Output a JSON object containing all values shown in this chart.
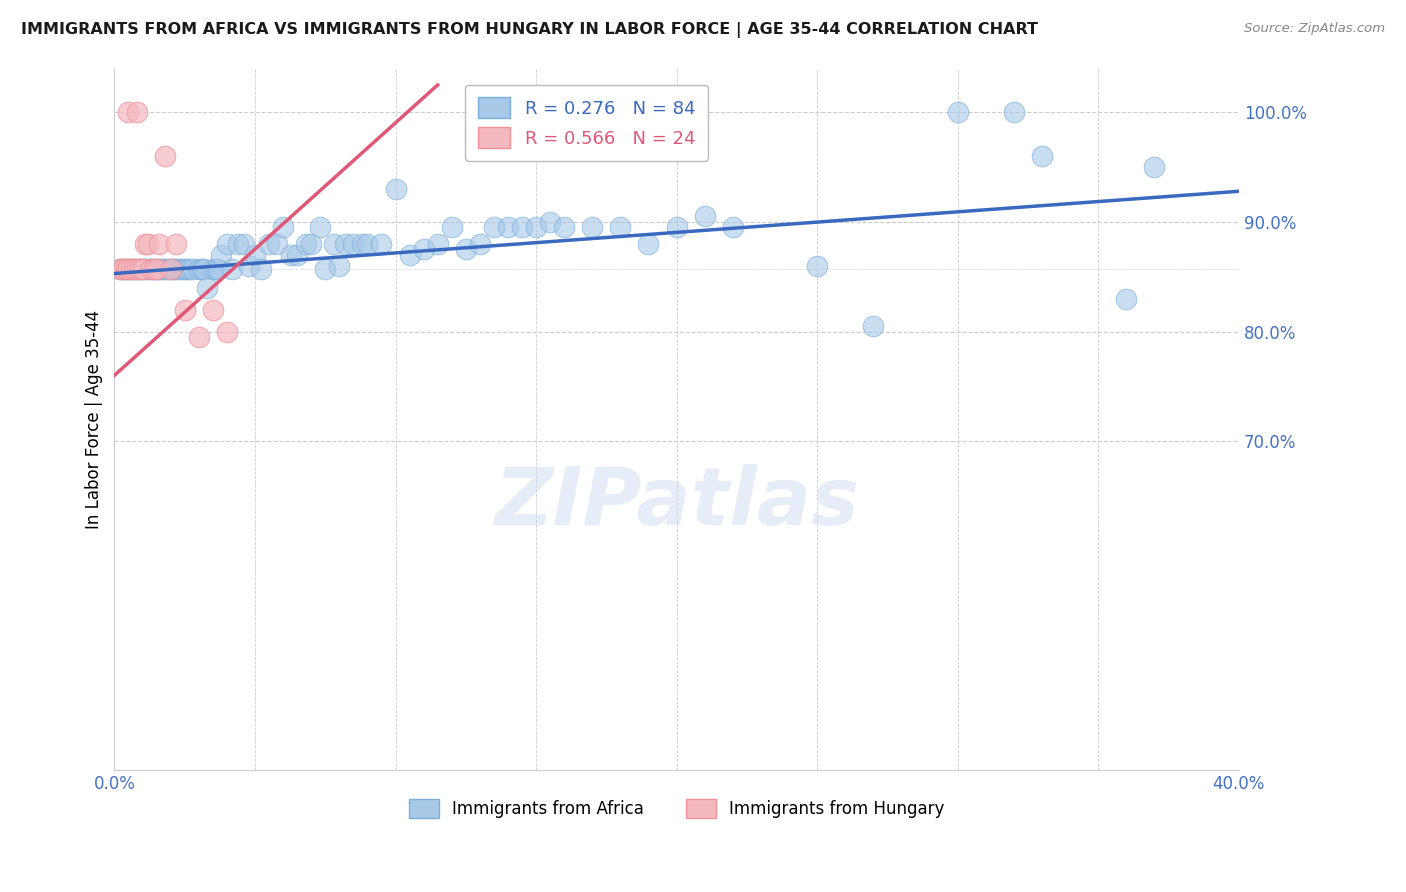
{
  "title": "IMMIGRANTS FROM AFRICA VS IMMIGRANTS FROM HUNGARY IN LABOR FORCE | AGE 35-44 CORRELATION CHART",
  "source": "Source: ZipAtlas.com",
  "ylabel": "In Labor Force | Age 35-44",
  "xlim": [
    0.0,
    0.4
  ],
  "ylim": [
    0.4,
    1.04
  ],
  "yticks": [
    0.7,
    0.8,
    0.9,
    1.0
  ],
  "ytick_labels": [
    "70.0%",
    "80.0%",
    "90.0%",
    "100.0%"
  ],
  "xticks": [
    0.0,
    0.05,
    0.1,
    0.15,
    0.2,
    0.25,
    0.3,
    0.35,
    0.4
  ],
  "xtick_labels": [
    "0.0%",
    "",
    "",
    "",
    "",
    "",
    "",
    "",
    "40.0%"
  ],
  "legend_r_africa": "0.276",
  "legend_n_africa": "84",
  "legend_r_hungary": "0.566",
  "legend_n_hungary": "24",
  "africa_color": "#a8c8e8",
  "africa_edge_color": "#7aaedc",
  "hungary_color": "#f4b8c0",
  "hungary_edge_color": "#f09098",
  "africa_line_color": "#3a6abf",
  "hungary_line_color": "#e05878",
  "tick_color": "#4472c4",
  "watermark": "ZIPatlas",
  "africa_scatter_x": [
    0.002,
    0.003,
    0.004,
    0.005,
    0.006,
    0.007,
    0.008,
    0.009,
    0.01,
    0.011,
    0.012,
    0.013,
    0.014,
    0.015,
    0.016,
    0.017,
    0.018,
    0.019,
    0.02,
    0.021,
    0.022,
    0.023,
    0.024,
    0.025,
    0.026,
    0.027,
    0.028,
    0.03,
    0.031,
    0.032,
    0.033,
    0.035,
    0.036,
    0.037,
    0.038,
    0.04,
    0.042,
    0.044,
    0.046,
    0.048,
    0.05,
    0.052,
    0.055,
    0.058,
    0.06,
    0.063,
    0.065,
    0.068,
    0.07,
    0.073,
    0.075,
    0.078,
    0.08,
    0.082,
    0.085,
    0.088,
    0.09,
    0.095,
    0.1,
    0.105,
    0.11,
    0.115,
    0.12,
    0.125,
    0.13,
    0.135,
    0.14,
    0.145,
    0.15,
    0.155,
    0.16,
    0.17,
    0.18,
    0.19,
    0.2,
    0.21,
    0.22,
    0.25,
    0.27,
    0.3,
    0.32,
    0.33,
    0.36,
    0.37
  ],
  "africa_scatter_y": [
    0.857,
    0.857,
    0.857,
    0.857,
    0.857,
    0.857,
    0.857,
    0.857,
    0.857,
    0.857,
    0.857,
    0.857,
    0.857,
    0.857,
    0.857,
    0.857,
    0.857,
    0.857,
    0.857,
    0.857,
    0.857,
    0.857,
    0.857,
    0.857,
    0.857,
    0.857,
    0.857,
    0.857,
    0.857,
    0.857,
    0.84,
    0.857,
    0.857,
    0.857,
    0.87,
    0.88,
    0.857,
    0.88,
    0.88,
    0.86,
    0.87,
    0.857,
    0.88,
    0.88,
    0.895,
    0.87,
    0.87,
    0.88,
    0.88,
    0.895,
    0.857,
    0.88,
    0.86,
    0.88,
    0.88,
    0.88,
    0.88,
    0.88,
    0.93,
    0.87,
    0.875,
    0.88,
    0.895,
    0.875,
    0.88,
    0.895,
    0.895,
    0.895,
    0.895,
    0.9,
    0.895,
    0.895,
    0.895,
    0.88,
    0.895,
    0.905,
    0.895,
    0.86,
    0.805,
    1.0,
    1.0,
    0.96,
    0.83,
    0.95
  ],
  "hungary_scatter_x": [
    0.002,
    0.003,
    0.004,
    0.005,
    0.005,
    0.006,
    0.007,
    0.008,
    0.008,
    0.009,
    0.01,
    0.011,
    0.012,
    0.013,
    0.014,
    0.015,
    0.016,
    0.018,
    0.02,
    0.022,
    0.025,
    0.03,
    0.035,
    0.04
  ],
  "hungary_scatter_y": [
    0.857,
    0.857,
    0.857,
    0.857,
    1.0,
    0.857,
    0.857,
    0.857,
    1.0,
    0.857,
    0.857,
    0.88,
    0.88,
    0.857,
    0.857,
    0.857,
    0.88,
    0.96,
    0.857,
    0.88,
    0.82,
    0.795,
    0.82,
    0.8
  ],
  "africa_trend_x": [
    0.0,
    0.4
  ],
  "africa_trend_y": [
    0.853,
    0.928
  ],
  "hungary_trend_x": [
    0.0,
    0.115
  ],
  "hungary_trend_y": [
    0.76,
    1.025
  ]
}
